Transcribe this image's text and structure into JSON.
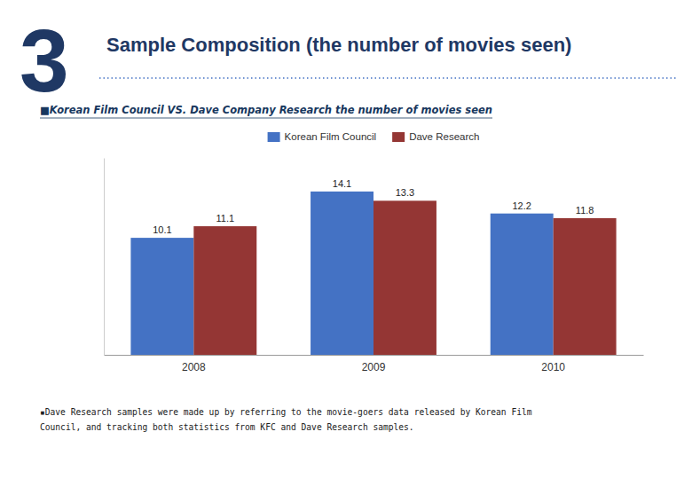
{
  "chart_data": {
    "type": "bar",
    "title": "Sample Composition (the number of movies seen)",
    "subtitle": "■Korean Film Council VS. Dave Company Research the number of movies seen",
    "annotations": [
      "3",
      "▪Dave Research samples were made up by referring to the movie-goers data released by Korean Film\nCouncil, and tracking both statistics from KFC and Dave Research samples."
    ],
    "categories": [
      "2008",
      "2009",
      "2010"
    ],
    "series": [
      {
        "name": "Korean Film Council",
        "color": "#4472C4",
        "values": [
          10.1,
          14.1,
          12.2
        ]
      },
      {
        "name": "Dave Research",
        "color": "#943634",
        "values": [
          11.1,
          13.3,
          11.8
        ]
      }
    ],
    "ylim": [
      0,
      17
    ],
    "grid": false,
    "legend": "top",
    "data_labels": true,
    "tick_labels": "x"
  }
}
